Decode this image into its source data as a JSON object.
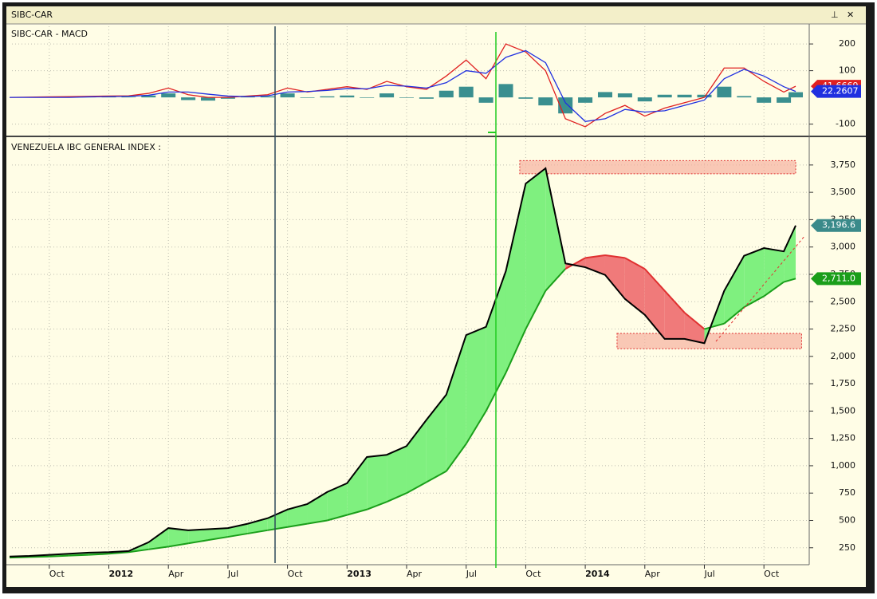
{
  "window": {
    "title": "SIBC-CAR"
  },
  "chart_data": [
    {
      "type": "line",
      "title": "SIBC-CAR - MACD",
      "x": [
        0,
        1,
        2,
        3,
        4,
        5,
        6,
        7,
        8,
        9,
        10,
        11,
        12,
        13,
        14,
        15,
        16,
        17,
        18,
        19,
        20,
        21,
        22,
        23,
        24,
        25,
        26,
        27,
        28,
        29,
        30,
        31,
        32,
        33,
        34,
        35,
        36,
        37,
        38,
        39,
        39.6
      ],
      "xlim": [
        0,
        39.8
      ],
      "ylim": [
        -137,
        260
      ],
      "yticks": [
        200,
        100,
        -100
      ],
      "grid": true,
      "series": [
        {
          "color": "#e02020",
          "tag_color": "#e02020",
          "values": [
            0,
            1,
            2,
            3,
            4,
            5,
            6,
            15,
            35,
            10,
            0,
            0,
            5,
            10,
            35,
            20,
            30,
            40,
            30,
            60,
            40,
            30,
            80,
            140,
            70,
            200,
            170,
            100,
            -80,
            -110,
            -60,
            -30,
            -70,
            -40,
            -20,
            0,
            110,
            110,
            60,
            20,
            41.6669
          ]
        },
        {
          "color": "#2030e0",
          "tag_color": "#2030e0",
          "values": [
            0,
            0,
            0,
            0,
            2,
            3,
            4,
            8,
            20,
            20,
            12,
            5,
            3,
            6,
            20,
            22,
            26,
            33,
            32,
            45,
            42,
            35,
            55,
            100,
            90,
            150,
            175,
            130,
            -20,
            -90,
            -80,
            -45,
            -55,
            -50,
            -30,
            -10,
            70,
            105,
            80,
            40,
            22.2607
          ]
        },
        {
          "mark": "bar",
          "color": "#3a8f8f",
          "values": [
            0,
            1,
            2,
            3,
            2,
            2,
            2,
            7,
            15,
            -10,
            -12,
            -5,
            2,
            4,
            15,
            -2,
            4,
            7,
            -2,
            15,
            -2,
            -5,
            25,
            40,
            -20,
            50,
            -5,
            -30,
            -60,
            -20,
            20,
            15,
            -15,
            10,
            10,
            10,
            40,
            5,
            -20,
            -20,
            19.4062
          ]
        }
      ]
    },
    {
      "type": "line",
      "title": "VENEZUELA IBC GENERAL INDEX :",
      "x": [
        0,
        1,
        2,
        3,
        4,
        5,
        6,
        7,
        8,
        9,
        10,
        11,
        12,
        13,
        14,
        15,
        16,
        17,
        18,
        19,
        20,
        21,
        22,
        23,
        24,
        25,
        26,
        27,
        28,
        29,
        30,
        31,
        32,
        33,
        34,
        35,
        36,
        37,
        38,
        39,
        39.6
      ],
      "xlim": [
        0,
        39.8
      ],
      "ylim": [
        117,
        3924
      ],
      "grid": true,
      "yticks": [
        250,
        500,
        750,
        {
          "value": 1000,
          "label": "1,000"
        },
        {
          "value": 1250,
          "label": "1,250"
        },
        {
          "value": 1500,
          "label": "1,500"
        },
        {
          "value": 1750,
          "label": "1,750"
        },
        {
          "value": 2000,
          "label": "2,000"
        },
        {
          "value": 2250,
          "label": "2,250"
        },
        {
          "value": 2500,
          "label": "2,500"
        },
        {
          "value": 2750,
          "label": "2,750"
        },
        {
          "value": 3000,
          "label": "3,000"
        },
        {
          "value": 3250,
          "label": "3,250"
        },
        {
          "value": 3500,
          "label": "3,500"
        },
        {
          "value": 3750,
          "label": "3,750"
        }
      ],
      "xticks": [
        {
          "value": 2,
          "label": "Oct"
        },
        {
          "value": 5,
          "label": "2012"
        },
        {
          "value": 8,
          "label": "Apr"
        },
        {
          "value": 11,
          "label": "Jul"
        },
        {
          "value": 14,
          "label": "Oct"
        },
        {
          "value": 17,
          "label": "2013"
        },
        {
          "value": 20,
          "label": "Apr"
        },
        {
          "value": 23,
          "label": "Jul"
        },
        {
          "value": 26,
          "label": "Oct"
        },
        {
          "value": 29,
          "label": "2014"
        },
        {
          "value": 32,
          "label": "Apr"
        },
        {
          "value": 35,
          "label": "Jul"
        },
        {
          "value": 38,
          "label": "Oct"
        }
      ],
      "series": [
        {
          "color": "#000000",
          "tag_color": "#3a8a8a",
          "last_label": "3,196.6",
          "values": [
            170,
            175,
            185,
            195,
            205,
            210,
            220,
            300,
            430,
            410,
            420,
            430,
            470,
            520,
            600,
            650,
            760,
            840,
            1080,
            1100,
            1180,
            1420,
            1650,
            2195,
            2270,
            2780,
            3580,
            3720,
            2850,
            2815,
            2745,
            2525,
            2380,
            2160,
            2160,
            2120,
            2600,
            2920,
            2990,
            2960,
            3196.6
          ]
        },
        {
          "color": "#1a9e1a",
          "down_color": "#e03030",
          "fill_color": "#7ff07f",
          "fill_down_color": "#f07a7a",
          "tag_color": "#1a9e1a",
          "last_label": "2,711.0",
          "values": [
            160,
            165,
            170,
            178,
            185,
            195,
            210,
            235,
            260,
            290,
            320,
            350,
            380,
            410,
            440,
            470,
            500,
            550,
            600,
            670,
            750,
            850,
            950,
            1200,
            1500,
            1850,
            2250,
            2600,
            2800,
            2900,
            2925,
            2900,
            2800,
            2600,
            2400,
            2250,
            2300,
            2450,
            2550,
            2680,
            2711.0
          ]
        }
      ],
      "zones": [
        {
          "xlim": [
            25.7,
            39.6
          ],
          "ylim": [
            3670,
            3790
          ]
        },
        {
          "xlim": [
            30.6,
            39.9
          ],
          "ylim": [
            2070,
            2210
          ]
        }
      ]
    }
  ]
}
